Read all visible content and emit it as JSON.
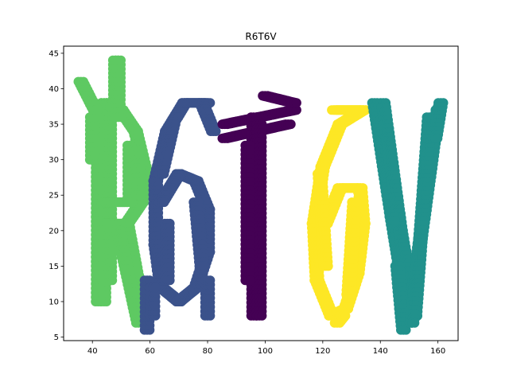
{
  "chart_data": {
    "type": "scatter",
    "title": "R6T6V",
    "xlabel": "",
    "ylabel": "",
    "xlim": [
      30,
      167
    ],
    "ylim": [
      4.5,
      46
    ],
    "xticks": [
      40,
      60,
      80,
      100,
      120,
      140,
      160
    ],
    "yticks": [
      5,
      10,
      15,
      20,
      25,
      30,
      35,
      40,
      45
    ],
    "grid": false,
    "legend": "none",
    "marker_color_note": "points colored by letter (viridis)",
    "series": [
      {
        "letter": "R",
        "color": "#5ec962",
        "strokes": [
          {
            "from": [
              44,
              10
            ],
            "to": [
              44,
              38
            ]
          },
          {
            "from": [
              42,
              10
            ],
            "to": [
              42,
              37
            ]
          },
          {
            "from": [
              40,
              30
            ],
            "to": [
              40,
              36
            ]
          },
          {
            "from": [
              46,
              13
            ],
            "to": [
              46,
              38
            ]
          },
          {
            "from": [
              44,
              38
            ],
            "to": [
              50,
              37
            ]
          },
          {
            "from": [
              50,
              37
            ],
            "to": [
              55,
              34
            ]
          },
          {
            "from": [
              55,
              34
            ],
            "to": [
              58,
              29
            ]
          },
          {
            "from": [
              58,
              29
            ],
            "to": [
              57,
              24
            ]
          },
          {
            "from": [
              57,
              24
            ],
            "to": [
              52,
              21
            ]
          },
          {
            "from": [
              52,
              21
            ],
            "to": [
              44,
              21
            ]
          },
          {
            "from": [
              44,
              24
            ],
            "to": [
              52,
              24
            ]
          },
          {
            "from": [
              52,
              21
            ],
            "to": [
              58,
              8
            ]
          },
          {
            "from": [
              49,
              20
            ],
            "to": [
              56,
              7
            ]
          },
          {
            "from": [
              36,
              41
            ],
            "to": [
              41,
              37
            ]
          },
          {
            "from": [
              49,
              44
            ],
            "to": [
              49,
              36
            ]
          },
          {
            "from": [
              48,
              38
            ],
            "to": [
              48,
              44
            ]
          },
          {
            "from": [
              53,
              32
            ],
            "to": [
              53,
              24
            ]
          },
          {
            "from": [
              56,
              32
            ],
            "to": [
              56,
              25
            ]
          }
        ]
      },
      {
        "letter": "6",
        "color": "#3b528b",
        "strokes": [
          {
            "from": [
              72,
              38
            ],
            "to": [
              66,
              34
            ]
          },
          {
            "from": [
              66,
              34
            ],
            "to": [
              62,
              27
            ]
          },
          {
            "from": [
              62,
              27
            ],
            "to": [
              62,
              18
            ]
          },
          {
            "from": [
              62,
              18
            ],
            "to": [
              64,
              12
            ]
          },
          {
            "from": [
              64,
              12
            ],
            "to": [
              70,
              10
            ]
          },
          {
            "from": [
              70,
              10
            ],
            "to": [
              76,
              12
            ]
          },
          {
            "from": [
              76,
              12
            ],
            "to": [
              80,
              17
            ]
          },
          {
            "from": [
              80,
              17
            ],
            "to": [
              80,
              23
            ]
          },
          {
            "from": [
              80,
              23
            ],
            "to": [
              76,
              27
            ]
          },
          {
            "from": [
              76,
              27
            ],
            "to": [
              70,
              28
            ]
          },
          {
            "from": [
              70,
              28
            ],
            "to": [
              64,
              24
            ]
          },
          {
            "from": [
              72,
              38
            ],
            "to": [
              80,
              38
            ]
          },
          {
            "from": [
              78,
              38
            ],
            "to": [
              82,
              34
            ]
          },
          {
            "from": [
              68,
              35
            ],
            "to": [
              64,
              28
            ]
          },
          {
            "from": [
              66,
              21
            ],
            "to": [
              66,
              13
            ]
          },
          {
            "from": [
              76,
              24
            ],
            "to": [
              78,
              15
            ]
          },
          {
            "from": [
              59,
              6
            ],
            "to": [
              59,
              13
            ]
          },
          {
            "from": [
              61,
              8
            ],
            "to": [
              61,
              12
            ]
          },
          {
            "from": [
              80,
              8
            ],
            "to": [
              80,
              13
            ]
          }
        ]
      },
      {
        "letter": "T",
        "color": "#440154",
        "strokes": [
          {
            "from": [
              86,
              35
            ],
            "to": [
              110,
              37
            ]
          },
          {
            "from": [
              86,
              33
            ],
            "to": [
              108,
              35
            ]
          },
          {
            "from": [
              100,
              39
            ],
            "to": [
              110,
              38
            ]
          },
          {
            "from": [
              96,
              36
            ],
            "to": [
              96,
              8
            ]
          },
          {
            "from": [
              98,
              35
            ],
            "to": [
              98,
              8
            ]
          },
          {
            "from": [
              94,
              32
            ],
            "to": [
              94,
              13
            ]
          }
        ]
      },
      {
        "letter": "6",
        "color": "#fde725",
        "strokes": [
          {
            "from": [
              134,
              37
            ],
            "to": [
              126,
              35
            ]
          },
          {
            "from": [
              126,
              35
            ],
            "to": [
              120,
              29
            ]
          },
          {
            "from": [
              120,
              29
            ],
            "to": [
              117,
              21
            ]
          },
          {
            "from": [
              117,
              21
            ],
            "to": [
              118,
              13
            ]
          },
          {
            "from": [
              118,
              13
            ],
            "to": [
              123,
              8
            ]
          },
          {
            "from": [
              123,
              8
            ],
            "to": [
              128,
              9
            ]
          },
          {
            "from": [
              128,
              9
            ],
            "to": [
              132,
              14
            ]
          },
          {
            "from": [
              132,
              14
            ],
            "to": [
              134,
              21
            ]
          },
          {
            "from": [
              134,
              21
            ],
            "to": [
              133,
              26
            ]
          },
          {
            "from": [
              133,
              26
            ],
            "to": [
              126,
              26
            ]
          },
          {
            "from": [
              126,
              26
            ],
            "to": [
              121,
              21
            ]
          },
          {
            "from": [
              124,
              37
            ],
            "to": [
              134,
              37
            ]
          },
          {
            "from": [
              119,
              28
            ],
            "to": [
              121,
              15
            ]
          },
          {
            "from": [
              129,
              11
            ],
            "to": [
              131,
              24
            ]
          },
          {
            "from": [
              125,
              7
            ],
            "to": [
              127,
              8
            ]
          }
        ]
      },
      {
        "letter": "V",
        "color": "#21918c",
        "strokes": [
          {
            "from": [
              138,
              38
            ],
            "to": [
              144,
              22
            ]
          },
          {
            "from": [
              141,
              38
            ],
            "to": [
              147,
              20
            ]
          },
          {
            "from": [
              144,
              22
            ],
            "to": [
              150,
              7
            ]
          },
          {
            "from": [
              147,
              20
            ],
            "to": [
              152,
              8
            ]
          },
          {
            "from": [
              150,
              7
            ],
            "to": [
              160,
              37
            ]
          },
          {
            "from": [
              152,
              8
            ],
            "to": [
              157,
              36
            ]
          },
          {
            "from": [
              146,
              15
            ],
            "to": [
              148,
              6
            ]
          },
          {
            "from": [
              153,
              15
            ],
            "to": [
              151,
              7
            ]
          },
          {
            "from": [
              161,
              38
            ],
            "to": [
              159,
              33
            ]
          }
        ]
      }
    ]
  }
}
